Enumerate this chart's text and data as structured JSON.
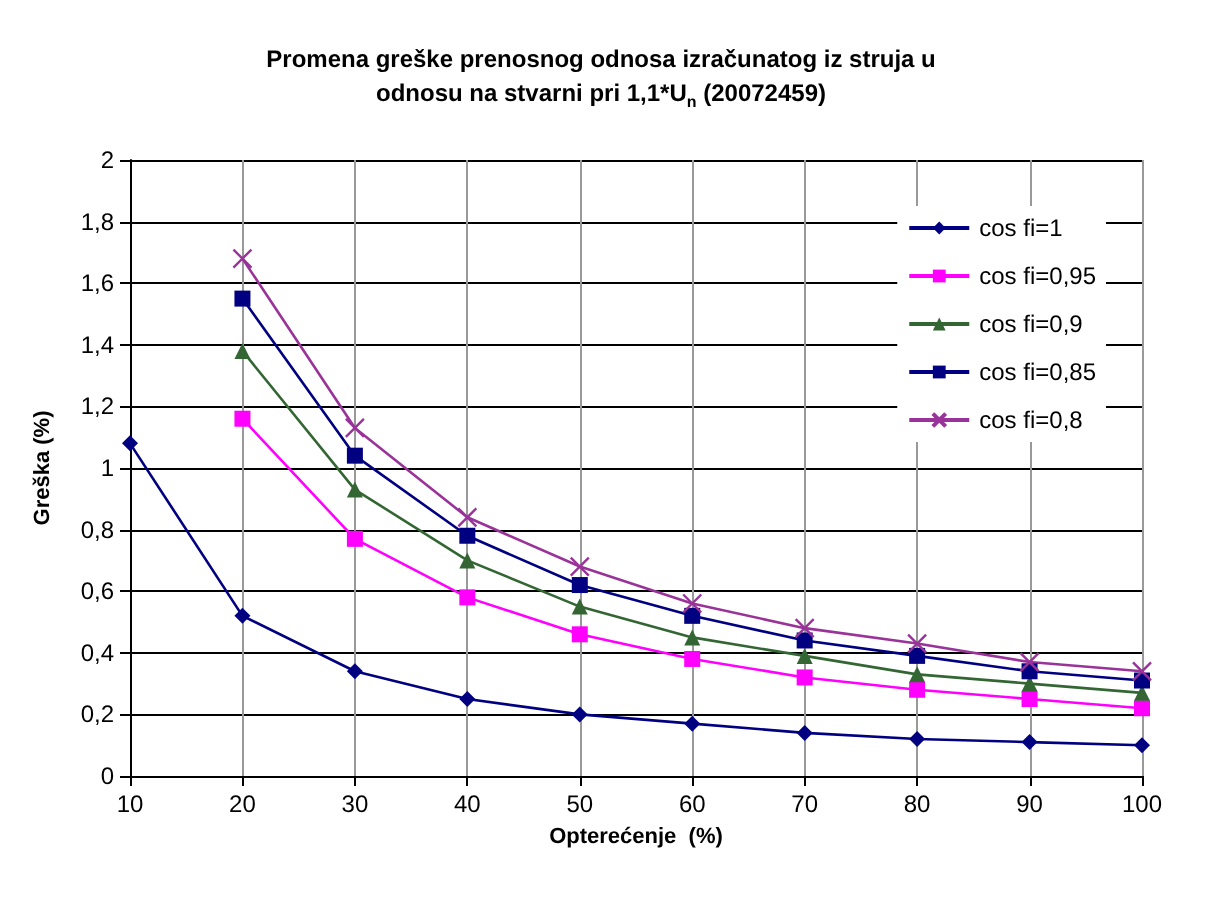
{
  "chart_data": {
    "type": "line",
    "title": "Promena greške prenosnog odnosa izračunatog iz struja u\nodnosu na stvarni pri 1,1*U$_{n}$ (20072459)",
    "xlabel": "Opterećenje  (%)",
    "ylabel": "Greška (%)",
    "x": [
      10,
      20,
      30,
      40,
      50,
      60,
      70,
      80,
      90,
      100
    ],
    "xlim": [
      10,
      100
    ],
    "xticks": [
      10,
      20,
      30,
      40,
      50,
      60,
      70,
      80,
      90,
      100
    ],
    "ylim": [
      0,
      2
    ],
    "yticks": [
      0,
      {
        "value": 0.2,
        "label": "0,2"
      },
      {
        "value": 0.4,
        "label": "0,4"
      },
      {
        "value": 0.6,
        "label": "0,6"
      },
      {
        "value": 0.8,
        "label": "0,8"
      },
      1,
      {
        "value": 1.2,
        "label": "1,2"
      },
      {
        "value": 1.4,
        "label": "1,4"
      },
      {
        "value": 1.6,
        "label": "1,6"
      },
      {
        "value": 1.8,
        "label": "1,8"
      },
      2
    ],
    "grid": true,
    "legend": "top right",
    "line_style": "solid",
    "series": [
      {
        "name": "cos fi=1",
        "color": "#000080",
        "marker": "diamond",
        "values": [
          1.08,
          0.52,
          0.34,
          0.25,
          0.2,
          0.17,
          0.14,
          0.12,
          0.11,
          0.1
        ]
      },
      {
        "name": "cos fi=0,95",
        "color": "#ff00ff",
        "marker": "square",
        "values": [
          null,
          1.16,
          0.77,
          0.58,
          0.46,
          0.38,
          0.32,
          0.28,
          0.25,
          0.22
        ]
      },
      {
        "name": "cos fi=0,9",
        "color": "#336633",
        "marker": "triangle",
        "values": [
          null,
          1.38,
          0.93,
          0.7,
          0.55,
          0.45,
          0.39,
          0.33,
          0.3,
          0.27
        ]
      },
      {
        "name": "cos fi=0,85",
        "color": "#000080",
        "marker": "square",
        "values": [
          null,
          1.55,
          1.04,
          0.78,
          0.62,
          0.52,
          0.44,
          0.39,
          0.34,
          0.31
        ]
      },
      {
        "name": "cos fi=0,8",
        "color": "#993399",
        "marker": "cross",
        "values": [
          null,
          1.68,
          1.13,
          0.84,
          0.68,
          0.56,
          0.48,
          0.43,
          0.37,
          0.34
        ]
      }
    ]
  }
}
